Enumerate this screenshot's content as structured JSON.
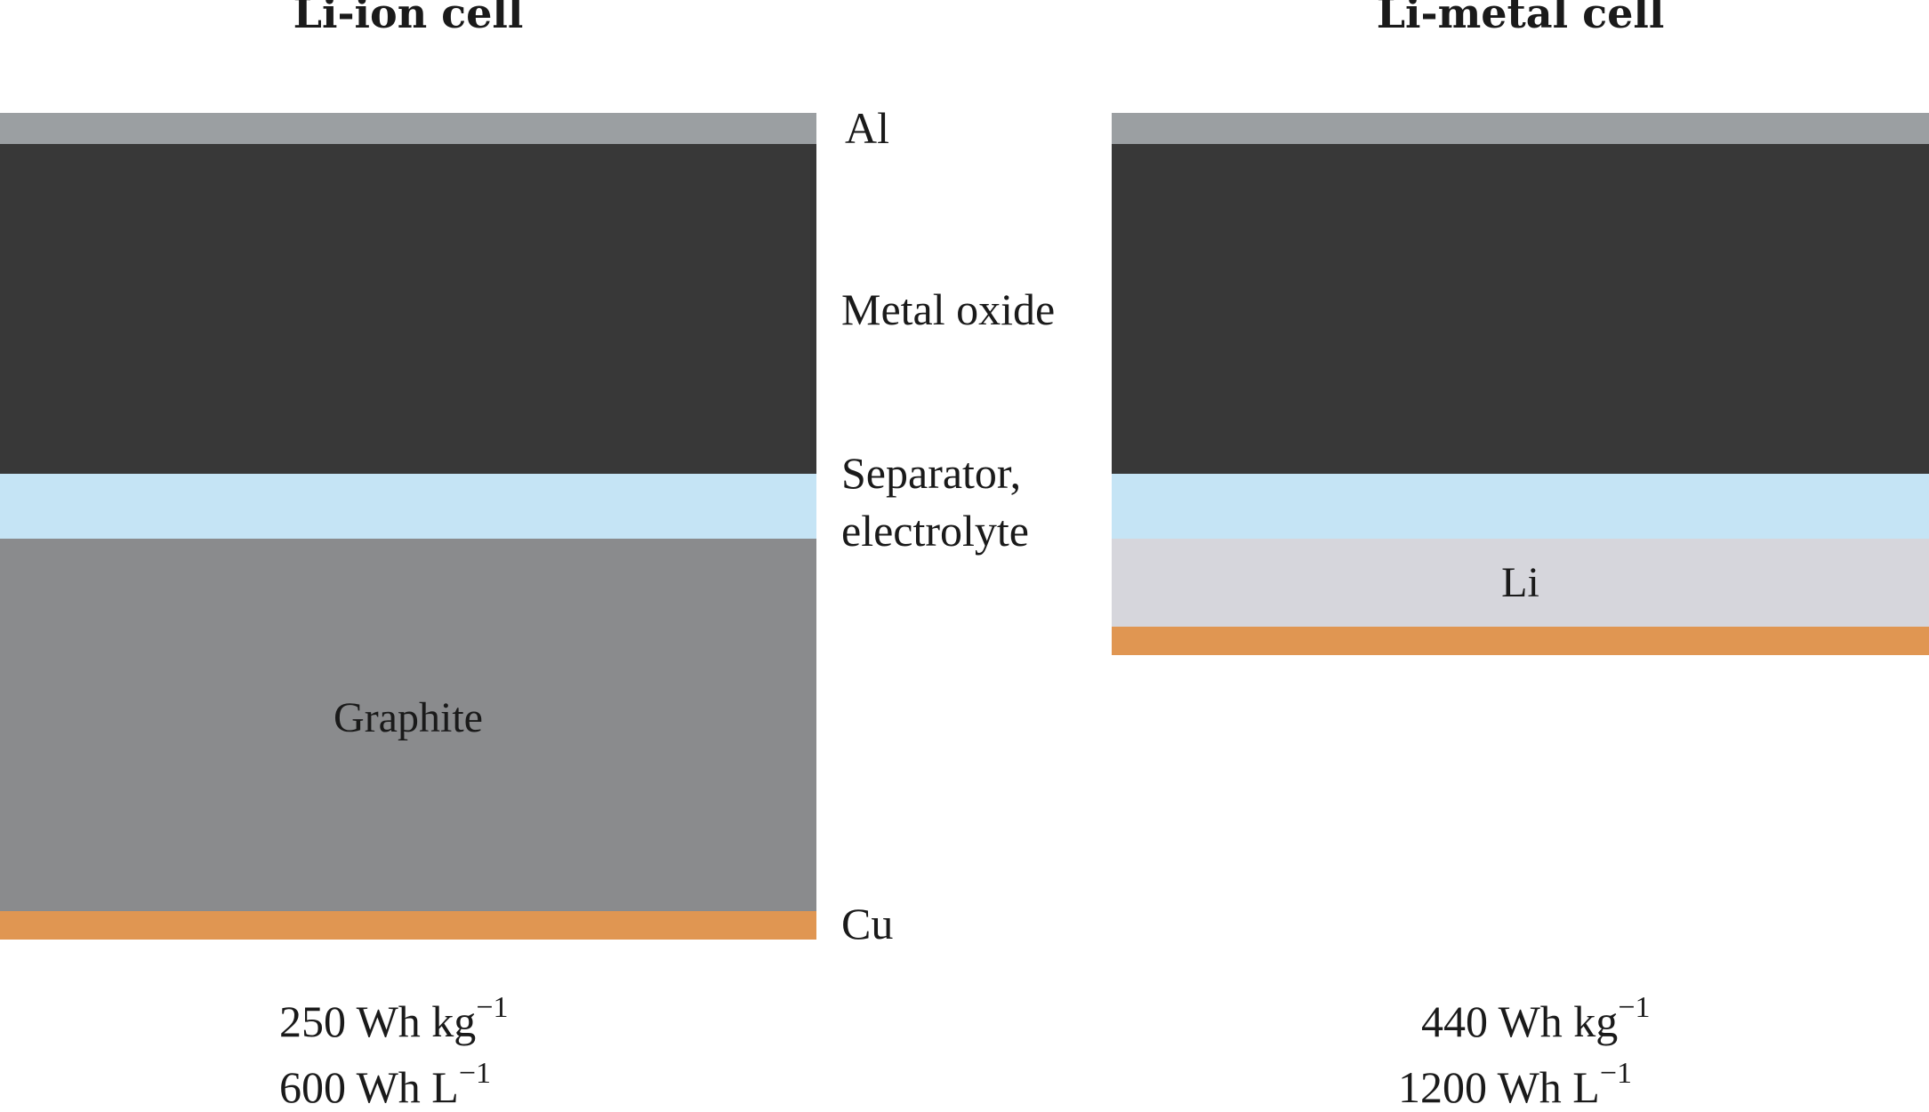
{
  "titles": {
    "left": "Li-ion cell",
    "right": "Li-metal cell"
  },
  "labels": {
    "al": "Al",
    "metal_oxide": "Metal oxide",
    "separator_line1": "Separator,",
    "separator_line2": "electrolyte",
    "cu": "Cu",
    "graphite": "Graphite",
    "li": "Li"
  },
  "specs": {
    "li_ion": {
      "gravimetric_value": "250",
      "gravimetric_unit": "Wh kg",
      "gravimetric_exp": "−1",
      "volumetric_value": "600",
      "volumetric_unit": "Wh L",
      "volumetric_exp": "−1"
    },
    "li_metal": {
      "gravimetric_value": "440",
      "gravimetric_unit": "Wh kg",
      "gravimetric_exp": "−1",
      "volumetric_value": "1200",
      "volumetric_unit": "Wh L",
      "volumetric_exp": "−1"
    }
  },
  "colors": {
    "aluminum": "#9b9fa2",
    "metal_oxide": "#383838",
    "separator": "#c5e4f5",
    "graphite": "#8a8b8d",
    "lithium": "#d6d6dc",
    "copper": "#e09652"
  }
}
